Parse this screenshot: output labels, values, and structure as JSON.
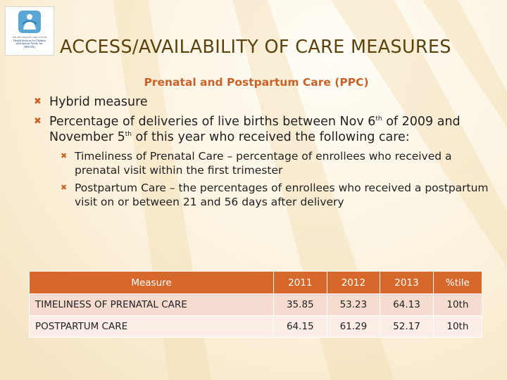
{
  "logo": {
    "line1": "THE HSC HEALTH CARE SYSTEM",
    "line2": "Health Services for Children",
    "line3": "with Special Needs, Inc.",
    "line4": "(HSCSN)"
  },
  "slide": {
    "title": "ACCESS/AVAILABILITY OF CARE MEASURES",
    "subtitle": "Prenatal and Postpartum Care (PPC)"
  },
  "bullets": {
    "b1": "Hybrid measure",
    "b2_part1": "Percentage of deliveries of live births between Nov 6",
    "b2_sup1": "th",
    "b2_part2": " of 2009 and November 5",
    "b2_sup2": "th",
    "b2_part3": " of this year who received the following care:",
    "sub1": "Timeliness of Prenatal Care – percentage of enrollees who received a prenatal visit within the first trimester",
    "sub2": "Postpartum Care – the percentages of enrollees who received a postpartum visit on or between 21 and 56 days after delivery"
  },
  "table": {
    "headers": [
      "Measure",
      "2011",
      "2012",
      "2013",
      "%tile"
    ],
    "rows": [
      [
        "TIMELINESS OF PRENATAL CARE",
        "35.85",
        "53.23",
        "64.13",
        "10th"
      ],
      [
        "POSTPARTUM CARE",
        "64.15",
        "61.29",
        "52.17",
        "10th"
      ]
    ]
  },
  "colors": {
    "title": "#5c430d",
    "accent": "#c9622a",
    "table_header": "#d5682a",
    "row1": "#f6dcd0",
    "row2": "#fbeee7"
  }
}
